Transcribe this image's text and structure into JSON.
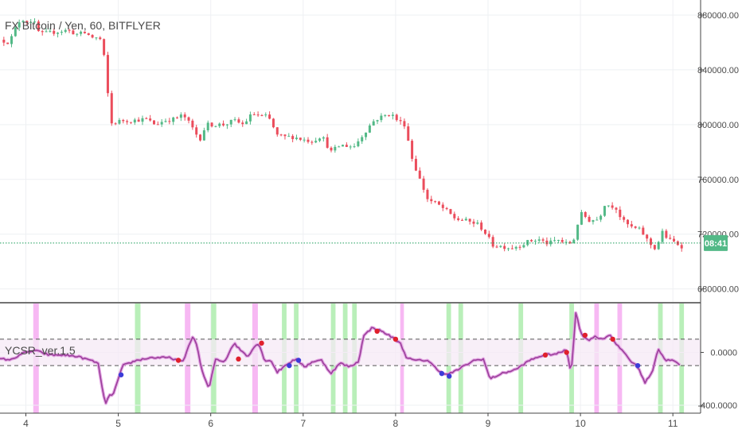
{
  "colors": {
    "background": "#ffffff",
    "grid": "#eef0f3",
    "axis_line": "#444444",
    "axis_text": "#4a4a4a",
    "bull": "#53b987",
    "bear": "#eb4d5c",
    "price_line": "#1b9e5a",
    "price_label_bg": "#53b987",
    "price_label_text": "#ffffff",
    "oscillator": "#9b3f9b",
    "oscillator_glow": "#e3a6e3",
    "band_fill": "#f6e9f6",
    "band_line": "#555555",
    "buy_zone": "#b9efb9",
    "sell_zone": "#f7b8f3",
    "buy_dot": "#3c3cd8",
    "sell_dot": "#e0202c"
  },
  "main_pane": {
    "title": "FX Bitcoin / Yen, 60, BITFLYER",
    "y_ticks": [
      "880000.00",
      "840000.00",
      "800000.00",
      "760000.00",
      "720000.00",
      "680000.00"
    ],
    "y_tick_values": [
      880000,
      840000,
      800000,
      760000,
      720000,
      680000
    ],
    "y_range": [
      670500,
      891000
    ],
    "price_line_value": 713500,
    "price_label": "08:41"
  },
  "lower_pane": {
    "title": "YCSR_ver.1.5",
    "y_ticks": [
      "0.0000",
      "-400.0000"
    ],
    "y_tick_values": [
      0,
      -400
    ],
    "y_range": [
      -460,
      370
    ],
    "upper_band": 100,
    "lower_band": -100
  },
  "x_axis": {
    "labels": [
      "4",
      "5",
      "6",
      "7",
      "8",
      "9",
      "10",
      "11"
    ],
    "label_days": [
      4,
      5,
      6,
      7,
      8,
      9,
      10,
      11
    ],
    "range_days": [
      3.72,
      11.3
    ]
  },
  "chart_data": {
    "type": "candlestick",
    "title": "FX Bitcoin / Yen, 60, BITFLYER",
    "x_unit": "day of month (hourly candles)",
    "ylim": [
      670500,
      891000
    ],
    "price_anchors": [
      [
        3.72,
        862000
      ],
      [
        3.82,
        860000
      ],
      [
        3.9,
        872000
      ],
      [
        3.95,
        878000
      ],
      [
        4.0,
        875000
      ],
      [
        4.08,
        876000
      ],
      [
        4.15,
        866000
      ],
      [
        4.25,
        867000
      ],
      [
        4.35,
        868000
      ],
      [
        4.45,
        869000
      ],
      [
        4.55,
        866000
      ],
      [
        4.65,
        867000
      ],
      [
        4.7,
        864000
      ],
      [
        4.8,
        863000
      ],
      [
        4.84,
        853000
      ],
      [
        4.88,
        826000
      ],
      [
        4.93,
        800000
      ],
      [
        4.98,
        802000
      ],
      [
        5.05,
        803000
      ],
      [
        5.15,
        803000
      ],
      [
        5.3,
        804000
      ],
      [
        5.4,
        800000
      ],
      [
        5.5,
        803000
      ],
      [
        5.6,
        804000
      ],
      [
        5.7,
        807000
      ],
      [
        5.78,
        800000
      ],
      [
        5.88,
        789000
      ],
      [
        5.95,
        800000
      ],
      [
        6.05,
        800000
      ],
      [
        6.15,
        800000
      ],
      [
        6.25,
        803000
      ],
      [
        6.35,
        800000
      ],
      [
        6.45,
        808000
      ],
      [
        6.55,
        806000
      ],
      [
        6.62,
        806000
      ],
      [
        6.72,
        792000
      ],
      [
        6.8,
        791000
      ],
      [
        6.9,
        791000
      ],
      [
        7.0,
        789000
      ],
      [
        7.1,
        788000
      ],
      [
        7.2,
        792000
      ],
      [
        7.3,
        780000
      ],
      [
        7.4,
        785000
      ],
      [
        7.55,
        784000
      ],
      [
        7.65,
        793000
      ],
      [
        7.75,
        802000
      ],
      [
        7.82,
        805000
      ],
      [
        7.9,
        807000
      ],
      [
        7.95,
        808000
      ],
      [
        8.02,
        803000
      ],
      [
        8.1,
        800000
      ],
      [
        8.18,
        775000
      ],
      [
        8.25,
        762000
      ],
      [
        8.35,
        745000
      ],
      [
        8.45,
        742000
      ],
      [
        8.55,
        737000
      ],
      [
        8.65,
        731000
      ],
      [
        8.75,
        730000
      ],
      [
        8.9,
        727000
      ],
      [
        8.98,
        720000
      ],
      [
        9.05,
        712000
      ],
      [
        9.15,
        711000
      ],
      [
        9.25,
        710000
      ],
      [
        9.35,
        712000
      ],
      [
        9.45,
        715000
      ],
      [
        9.55,
        716000
      ],
      [
        9.65,
        713000
      ],
      [
        9.75,
        716000
      ],
      [
        9.85,
        713000
      ],
      [
        9.92,
        714000
      ],
      [
        9.96,
        726000
      ],
      [
        10.02,
        736000
      ],
      [
        10.08,
        730000
      ],
      [
        10.2,
        731000
      ],
      [
        10.26,
        742000
      ],
      [
        10.32,
        741000
      ],
      [
        10.38,
        740000
      ],
      [
        10.45,
        730000
      ],
      [
        10.55,
        725000
      ],
      [
        10.65,
        723000
      ],
      [
        10.75,
        713000
      ],
      [
        10.82,
        709000
      ],
      [
        10.88,
        722000
      ],
      [
        10.95,
        716000
      ],
      [
        11.02,
        714000
      ],
      [
        11.1,
        711000
      ]
    ],
    "last_price": 713500,
    "indicator": {
      "name": "YCSR_ver.1.5",
      "ylim": [
        -460,
        370
      ],
      "bands": [
        100,
        -100
      ],
      "anchors": [
        [
          3.72,
          -50
        ],
        [
          3.85,
          -55
        ],
        [
          3.95,
          -10
        ],
        [
          4.1,
          15
        ],
        [
          4.25,
          -20
        ],
        [
          4.4,
          -20
        ],
        [
          4.55,
          -30
        ],
        [
          4.7,
          -60
        ],
        [
          4.78,
          -80
        ],
        [
          4.82,
          -240
        ],
        [
          4.86,
          -400
        ],
        [
          4.9,
          -330
        ],
        [
          4.95,
          -310
        ],
        [
          5.0,
          -200
        ],
        [
          5.05,
          -100
        ],
        [
          5.2,
          -60
        ],
        [
          5.35,
          -40
        ],
        [
          5.55,
          -40
        ],
        [
          5.7,
          -70
        ],
        [
          5.8,
          120
        ],
        [
          5.85,
          60
        ],
        [
          5.9,
          -130
        ],
        [
          5.98,
          -280
        ],
        [
          6.05,
          -50
        ],
        [
          6.15,
          -70
        ],
        [
          6.25,
          70
        ],
        [
          6.32,
          20
        ],
        [
          6.4,
          -30
        ],
        [
          6.48,
          50
        ],
        [
          6.52,
          70
        ],
        [
          6.58,
          -60
        ],
        [
          6.65,
          -60
        ],
        [
          6.72,
          -150
        ],
        [
          6.82,
          -90
        ],
        [
          6.92,
          -50
        ],
        [
          7.02,
          -110
        ],
        [
          7.1,
          -70
        ],
        [
          7.2,
          -60
        ],
        [
          7.3,
          -160
        ],
        [
          7.4,
          -80
        ],
        [
          7.5,
          -110
        ],
        [
          7.6,
          -70
        ],
        [
          7.65,
          120
        ],
        [
          7.75,
          190
        ],
        [
          7.85,
          160
        ],
        [
          7.95,
          120
        ],
        [
          8.05,
          70
        ],
        [
          8.12,
          -40
        ],
        [
          8.2,
          -60
        ],
        [
          8.35,
          -60
        ],
        [
          8.45,
          -130
        ],
        [
          8.55,
          -170
        ],
        [
          8.65,
          -140
        ],
        [
          8.75,
          -100
        ],
        [
          8.85,
          -60
        ],
        [
          8.95,
          -50
        ],
        [
          9.02,
          -200
        ],
        [
          9.15,
          -160
        ],
        [
          9.3,
          -130
        ],
        [
          9.45,
          -60
        ],
        [
          9.6,
          -20
        ],
        [
          9.75,
          -10
        ],
        [
          9.85,
          20
        ],
        [
          9.9,
          -160
        ],
        [
          9.95,
          310
        ],
        [
          10.0,
          150
        ],
        [
          10.08,
          90
        ],
        [
          10.15,
          120
        ],
        [
          10.25,
          100
        ],
        [
          10.32,
          140
        ],
        [
          10.38,
          60
        ],
        [
          10.45,
          20
        ],
        [
          10.55,
          -70
        ],
        [
          10.62,
          -110
        ],
        [
          10.7,
          -230
        ],
        [
          10.78,
          -140
        ],
        [
          10.84,
          30
        ],
        [
          10.88,
          -20
        ],
        [
          10.93,
          -60
        ],
        [
          11.0,
          -60
        ],
        [
          11.08,
          -100
        ]
      ],
      "buy_zones": [
        [
          5.18,
          5.24
        ],
        [
          6.0,
          6.06
        ],
        [
          6.77,
          6.82
        ],
        [
          6.9,
          6.95
        ],
        [
          7.3,
          7.35
        ],
        [
          7.43,
          7.48
        ],
        [
          7.53,
          7.58
        ],
        [
          8.55,
          8.6
        ],
        [
          8.68,
          8.73
        ],
        [
          9.33,
          9.38
        ],
        [
          9.88,
          9.93
        ],
        [
          10.84,
          10.89
        ],
        [
          11.07,
          11.12
        ]
      ],
      "sell_zones": [
        [
          4.08,
          4.14
        ],
        [
          5.72,
          5.78
        ],
        [
          6.45,
          6.51
        ],
        [
          8.05,
          8.09
        ],
        [
          10.15,
          10.2
        ],
        [
          10.4,
          10.45
        ]
      ],
      "buy_signals": [
        [
          5.03,
          -170
        ],
        [
          6.85,
          -100
        ],
        [
          6.95,
          -60
        ],
        [
          8.5,
          -160
        ],
        [
          8.58,
          -180
        ],
        [
          10.62,
          -100
        ]
      ],
      "sell_signals": [
        [
          5.65,
          -60
        ],
        [
          6.3,
          -50
        ],
        [
          6.55,
          70
        ],
        [
          7.8,
          160
        ],
        [
          8.0,
          100
        ],
        [
          9.62,
          -20
        ],
        [
          9.85,
          0
        ],
        [
          10.05,
          130
        ],
        [
          10.35,
          100
        ]
      ]
    }
  }
}
